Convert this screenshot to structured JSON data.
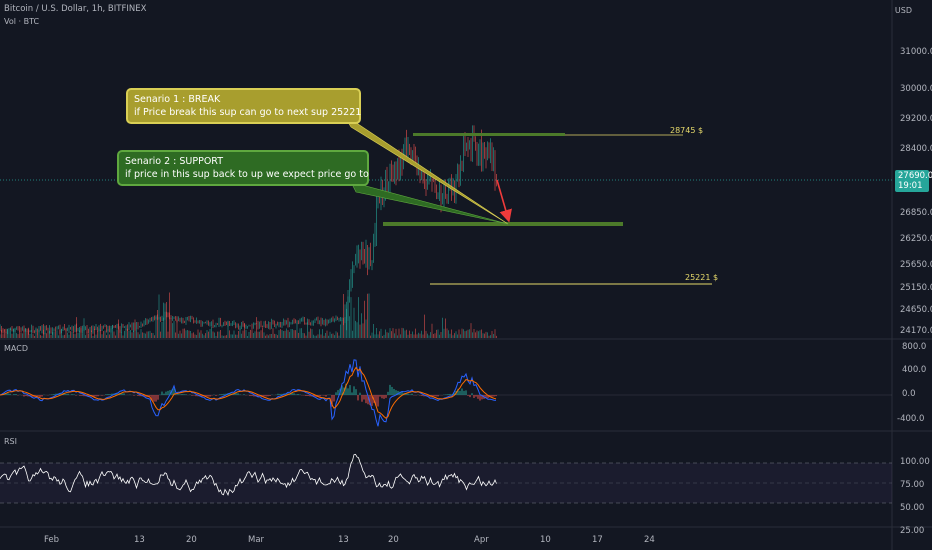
{
  "header": {
    "title": "Bitcoin / U.S. Dollar, 1h, BITFINEX",
    "volume_label": "Vol · BTC",
    "currency": "USD"
  },
  "price_axis": {
    "ticks": [
      "31000.0",
      "30000.0",
      "29200.0",
      "28400.0",
      "27690.0",
      "26850.0",
      "26250.0",
      "25650.0",
      "25150.0",
      "24650.0",
      "24170.0"
    ],
    "current_price": "27690.0",
    "countdown": "19:01"
  },
  "macd": {
    "label": "MACD",
    "ticks": [
      "800.0",
      "400.0",
      "0.0",
      "-400.0"
    ]
  },
  "rsi": {
    "label": "RSI",
    "ticks": [
      "100.00",
      "75.00",
      "50.00",
      "25.00"
    ]
  },
  "time_axis": {
    "labels": [
      "Feb",
      "13",
      "20",
      "Mar",
      "13",
      "20",
      "Apr",
      "10",
      "17",
      "24"
    ]
  },
  "annotations": {
    "scenario1_title": "Senario 1 : BREAK",
    "scenario1_text": "if Price break this sup can go to next sup 25221",
    "scenario2_title": "Senario 2 : SUPPORT",
    "scenario2_text": "if price in this sup back to up we expect price go to",
    "resistance_label": "28745 $",
    "target_label": "25221 $"
  },
  "colors": {
    "background": "#131722",
    "up": "#26a69a",
    "down": "#ef5350",
    "callout1": "#a89e2e",
    "callout2": "#2e6b23",
    "level_line": "#e6d96b",
    "zone": "#4c7a2a",
    "arrow": "#ef3b3b",
    "macd_line": "#2962ff",
    "signal_line": "#ff6d00",
    "rsi_line": "#ffffff",
    "current_price_bg": "#26a69a"
  }
}
